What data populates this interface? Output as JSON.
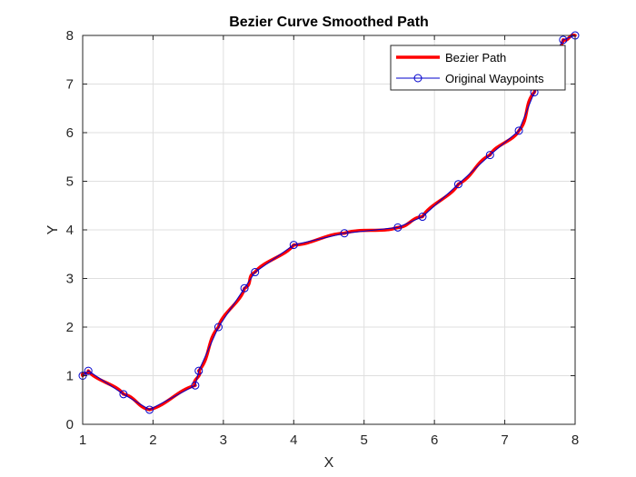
{
  "chart_data": {
    "type": "line",
    "title": "Bezier Curve Smoothed Path",
    "xlabel": "X",
    "ylabel": "Y",
    "xlim": [
      1,
      8
    ],
    "ylim": [
      0,
      8
    ],
    "x_ticks": [
      "1",
      "2",
      "3",
      "4",
      "5",
      "6",
      "7",
      "8"
    ],
    "y_ticks": [
      "0",
      "1",
      "2",
      "3",
      "4",
      "5",
      "6",
      "7",
      "8"
    ],
    "grid": true,
    "legend_position": "top-right",
    "series": [
      {
        "name": "Bezier Path",
        "color": "#ff0000",
        "style": "thick-line"
      },
      {
        "name": "Original Waypoints",
        "color": "#0000cc",
        "style": "line-with-circle-markers",
        "x": [
          1.0,
          1.08,
          1.58,
          1.95,
          2.6,
          2.65,
          2.93,
          3.3,
          3.45,
          4.0,
          4.72,
          5.48,
          5.83,
          6.34,
          6.79,
          7.2,
          7.42,
          7.83,
          8.0
        ],
        "y": [
          1.0,
          1.1,
          0.62,
          0.3,
          0.8,
          1.1,
          2.0,
          2.8,
          3.13,
          3.69,
          3.93,
          4.05,
          4.27,
          4.94,
          5.54,
          6.04,
          6.83,
          7.91,
          8.0
        ]
      }
    ]
  }
}
